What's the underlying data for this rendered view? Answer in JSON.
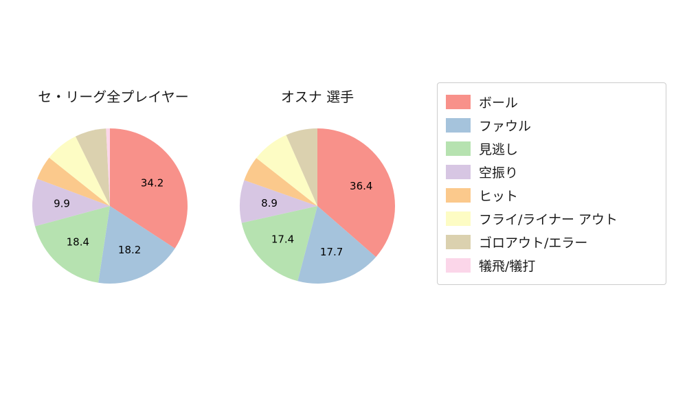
{
  "colors": [
    "#f8918a",
    "#a5c3dc",
    "#b6e2b0",
    "#d7c6e3",
    "#fbc98c",
    "#fdfcc4",
    "#dbd1af",
    "#fbd6e9"
  ],
  "legend": {
    "items": [
      {
        "label": "ボール"
      },
      {
        "label": "ファウル"
      },
      {
        "label": "見逃し"
      },
      {
        "label": "空振り"
      },
      {
        "label": "ヒット"
      },
      {
        "label": "フライ/ライナー アウト"
      },
      {
        "label": "ゴロアウト/エラー"
      },
      {
        "label": "犠飛/犠打"
      }
    ]
  },
  "chart_data": [
    {
      "type": "pie",
      "title": "セ・リーグ全プレイヤー",
      "categories": [
        "ボール",
        "ファウル",
        "見逃し",
        "空振り",
        "ヒット",
        "フライ/ライナー アウト",
        "ゴロアウト/エラー",
        "犠飛/犠打"
      ],
      "values": [
        34.2,
        18.2,
        18.4,
        9.9,
        5.0,
        7.0,
        6.5,
        0.8
      ],
      "data_labels": [
        "34.2",
        "18.2",
        "18.4",
        "9.9",
        "",
        "",
        "",
        ""
      ],
      "start_angle": "top",
      "direction": "clockwise",
      "legend_position": "right"
    },
    {
      "type": "pie",
      "title": "オスナ 選手",
      "categories": [
        "ボール",
        "ファウル",
        "見逃し",
        "空振り",
        "ヒット",
        "フライ/ライナー アウト",
        "ゴロアウト/エラー",
        "犠飛/犠打"
      ],
      "values": [
        36.4,
        17.7,
        17.4,
        8.9,
        5.2,
        7.8,
        6.6,
        0.0
      ],
      "data_labels": [
        "36.4",
        "17.7",
        "17.4",
        "8.9",
        "",
        "",
        "",
        ""
      ],
      "start_angle": "top",
      "direction": "clockwise",
      "legend_position": "right"
    }
  ]
}
